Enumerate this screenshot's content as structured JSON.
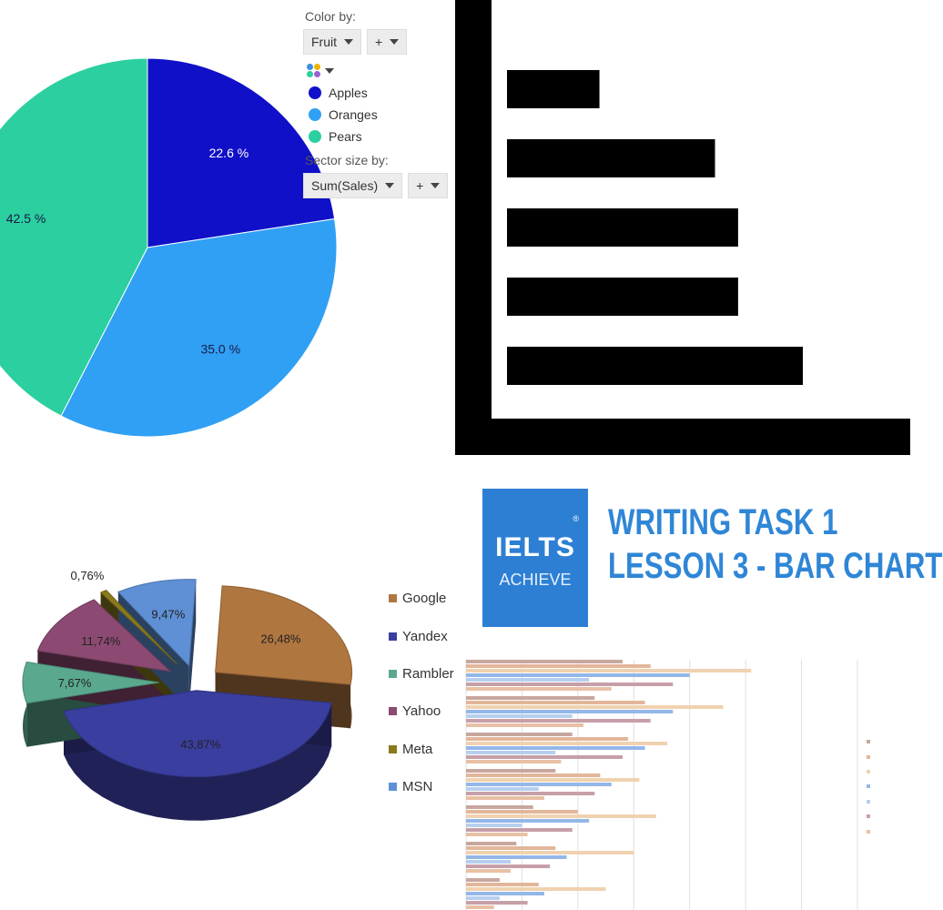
{
  "panel": {
    "color_by_label": "Color by:",
    "color_by_value": "Fruit",
    "plus": "+",
    "sector_size_label": "Sector size by:",
    "sector_size_value": "Sum(Sales)",
    "palette_icon": "palette-icon"
  },
  "logo": {
    "line1": "IELTS",
    "line2": "ACHIEVE",
    "reg": "®"
  },
  "writing": {
    "line1": "WRITING TASK 1",
    "line2": "LESSON 3 - BAR CHART"
  },
  "chart_data": [
    {
      "type": "pie",
      "labels": [
        "Apples",
        "Oranges",
        "Pears"
      ],
      "values": [
        22.6,
        35.0,
        42.5
      ],
      "value_labels": [
        "22.6 %",
        "35.0 %",
        "42.5 %"
      ],
      "colors": [
        "#1010c8",
        "#30a0f4",
        "#2ccf9f"
      ],
      "legend_placement": "right"
    },
    {
      "type": "bar",
      "orientation": "horizontal",
      "values": [
        2,
        4.5,
        5,
        5,
        6.4
      ],
      "colors": {
        "bars": "#000000",
        "background": "#ffffff",
        "frame": "#000000"
      }
    },
    {
      "type": "pie",
      "style": "3d-exploded",
      "labels": [
        "Google",
        "Yandex",
        "Rambler",
        "Yahoo",
        "Meta",
        "MSN"
      ],
      "values": [
        26.48,
        43.87,
        7.67,
        11.74,
        0.76,
        9.47
      ],
      "value_labels": [
        "26,48%",
        "43,87%",
        "7,67%",
        "11,74%",
        "0,76%",
        "9,47%"
      ],
      "colors": [
        "#b07640",
        "#3a3e9e",
        "#5aa98e",
        "#8c4a72",
        "#8a7a1e",
        "#5f90d6"
      ],
      "legend_placement": "right"
    },
    {
      "type": "bar",
      "orientation": "horizontal",
      "series": [
        {
          "values": [
            2.8,
            2.3,
            1.9,
            1.6,
            1.2,
            0.9,
            0.6
          ]
        },
        {
          "values": [
            3.3,
            3.2,
            2.9,
            2.4,
            2.0,
            1.6,
            1.3
          ]
        },
        {
          "values": [
            5.1,
            4.6,
            3.6,
            3.1,
            3.4,
            3.0,
            2.5
          ]
        },
        {
          "values": [
            4.0,
            3.7,
            3.2,
            2.6,
            2.2,
            1.8,
            1.4
          ]
        },
        {
          "values": [
            2.2,
            1.9,
            1.6,
            1.3,
            1.0,
            0.8,
            0.6
          ]
        },
        {
          "values": [
            3.7,
            3.3,
            2.8,
            2.3,
            1.9,
            1.5,
            1.1
          ]
        },
        {
          "values": [
            2.6,
            2.1,
            1.7,
            1.4,
            1.1,
            0.8,
            0.5
          ]
        }
      ],
      "colors": [
        "#c7a79e",
        "#e3b69a",
        "#f0d2b0",
        "#93b7e8",
        "#b7cfee",
        "#c79fa8",
        "#e8c0a4"
      ],
      "xlim": [
        0,
        7
      ],
      "grid": true,
      "legend_placement": "right"
    }
  ]
}
